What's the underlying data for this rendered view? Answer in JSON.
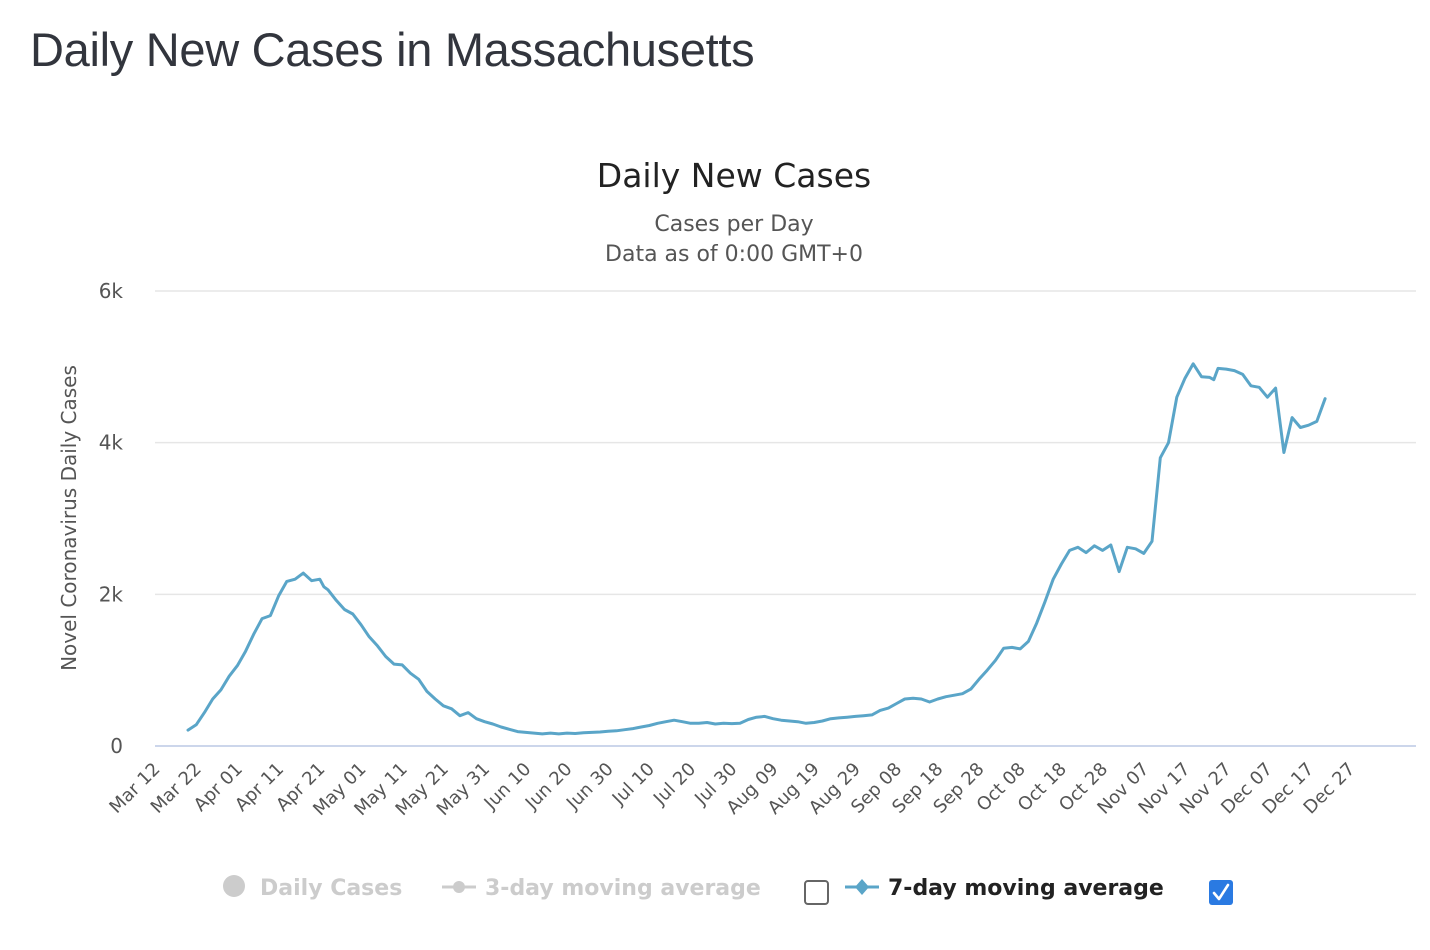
{
  "page": {
    "title": "Daily New Cases in Massachusetts"
  },
  "chart_data": {
    "type": "line",
    "title": "Daily New Cases",
    "subtitle_lines": [
      "Cases per Day",
      "Data as of 0:00 GMT+0"
    ],
    "xlabel": "",
    "ylabel": "Novel Coronavirus Daily Cases",
    "ylim": [
      0,
      6000
    ],
    "yticks": [
      0,
      2000,
      4000,
      6000
    ],
    "ytick_labels": [
      "0",
      "2k",
      "4k",
      "6k"
    ],
    "grid": true,
    "xtick_labels": [
      "Mar 12",
      "Mar 22",
      "Apr 01",
      "Apr 11",
      "Apr 21",
      "May 01",
      "May 11",
      "May 21",
      "May 31",
      "Jun 10",
      "Jun 20",
      "Jun 30",
      "Jul 10",
      "Jul 20",
      "Jul 30",
      "Aug 09",
      "Aug 19",
      "Aug 29",
      "Sep 08",
      "Sep 18",
      "Sep 28",
      "Oct 08",
      "Oct 18",
      "Oct 28",
      "Nov 07",
      "Nov 17",
      "Nov 27",
      "Dec 07",
      "Dec 17",
      "Dec 27"
    ],
    "x_start_label": "Mar 12",
    "x_day_span": [
      0,
      294
    ],
    "series": [
      {
        "name": "7-day moving average",
        "color": "#5aa5c8",
        "visible": true,
        "day_offset": [
          8,
          10,
          12,
          14,
          16,
          18,
          20,
          22,
          24,
          26,
          28,
          30,
          32,
          34,
          36,
          38,
          40,
          41,
          42,
          44,
          46,
          48,
          50,
          52,
          54,
          56,
          58,
          60,
          62,
          64,
          66,
          68,
          70,
          72,
          74,
          76,
          78,
          80,
          82,
          84,
          86,
          88,
          90,
          92,
          94,
          96,
          98,
          100,
          102,
          104,
          106,
          108,
          110,
          112,
          114,
          116,
          118,
          120,
          122,
          124,
          126,
          128,
          130,
          132,
          134,
          136,
          138,
          140,
          142,
          144,
          146,
          148,
          150,
          152,
          154,
          156,
          158,
          160,
          162,
          164,
          166,
          168,
          170,
          172,
          174,
          176,
          178,
          180,
          182,
          184,
          186,
          188,
          190,
          192,
          194,
          196,
          198,
          200,
          202,
          204,
          206,
          208,
          210,
          212,
          214,
          216,
          218,
          220,
          222,
          224,
          226,
          228,
          230,
          232,
          234,
          236,
          238,
          240,
          242,
          244,
          246,
          248,
          250,
          252,
          254,
          256,
          257,
          258,
          260,
          262,
          264,
          266,
          268,
          270,
          272,
          274,
          276,
          278,
          280,
          282,
          284,
          286,
          287,
          288,
          290,
          292,
          294
        ],
        "values": [
          210,
          280,
          440,
          620,
          740,
          920,
          1060,
          1250,
          1480,
          1680,
          1720,
          1980,
          2170,
          2200,
          2280,
          2180,
          2200,
          2100,
          2060,
          1920,
          1800,
          1740,
          1600,
          1440,
          1320,
          1180,
          1080,
          1070,
          960,
          880,
          720,
          620,
          530,
          490,
          400,
          440,
          360,
          320,
          290,
          250,
          220,
          190,
          180,
          170,
          160,
          170,
          160,
          170,
          165,
          175,
          180,
          185,
          195,
          200,
          215,
          230,
          250,
          270,
          300,
          320,
          340,
          320,
          300,
          300,
          310,
          290,
          300,
          295,
          300,
          350,
          380,
          390,
          360,
          340,
          330,
          320,
          300,
          310,
          330,
          360,
          370,
          380,
          390,
          400,
          410,
          470,
          500,
          560,
          620,
          630,
          620,
          580,
          620,
          650,
          670,
          690,
          750,
          880,
          1000,
          1130,
          1290,
          1300,
          1280,
          1380,
          1620,
          1900,
          2200,
          2400,
          2580,
          2620,
          2550,
          2640,
          2580,
          2650,
          2300,
          2620,
          2600,
          2540,
          2700,
          3800,
          4000,
          4600,
          4850,
          5040,
          4870,
          4860,
          4830,
          4980,
          4970,
          4950,
          4900,
          4750,
          4730,
          4600,
          4720,
          3870,
          4330,
          4200,
          4230,
          4280,
          4580
        ]
      },
      {
        "name": "3-day moving average",
        "visible": false
      },
      {
        "name": "Daily Cases",
        "visible": false
      }
    ],
    "legend": {
      "position": "bottom-center",
      "items": [
        {
          "label": "Daily Cases",
          "state": "hidden",
          "color": "#cccccc"
        },
        {
          "label": "3-day moving average",
          "state": "hidden",
          "color": "#cccccc",
          "checkbox_checked": false
        },
        {
          "label": "7-day moving average",
          "state": "visible",
          "color": "#5aa5c8",
          "checkbox_checked": true
        }
      ]
    }
  },
  "colors": {
    "line": "#5aa5c8",
    "checkbox_checked": "#2a7ae2",
    "grid": "#e6e6e6",
    "axis": "#ccd6eb"
  }
}
